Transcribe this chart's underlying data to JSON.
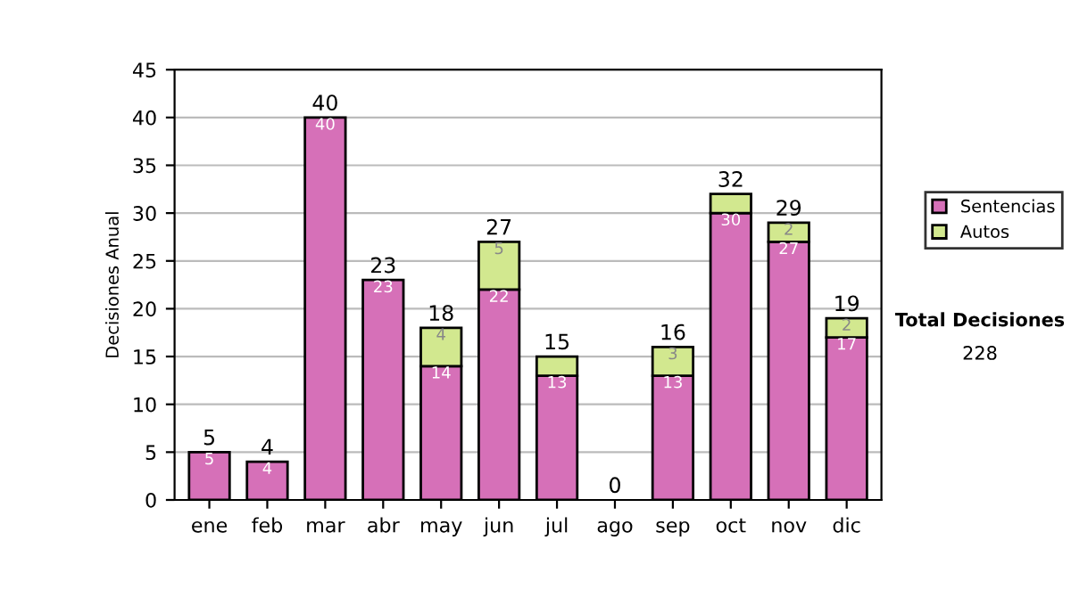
{
  "chart_data": {
    "type": "bar",
    "stacked": true,
    "ylabel": "Decisiones Anual",
    "categories": [
      "ene",
      "feb",
      "mar",
      "abr",
      "may",
      "jun",
      "jul",
      "ago",
      "sep",
      "oct",
      "nov",
      "dic"
    ],
    "series": [
      {
        "name": "Sentencias",
        "color": "#d670b8",
        "values": [
          5,
          4,
          40,
          23,
          14,
          22,
          13,
          null,
          13,
          30,
          27,
          17
        ],
        "value_labels": [
          "5",
          "4",
          "40",
          "23",
          "14",
          "22",
          "13",
          null,
          "13",
          "30",
          "27",
          "17"
        ]
      },
      {
        "name": "Autos",
        "color": "#d2e88f",
        "values": [
          null,
          null,
          null,
          null,
          4,
          5,
          2,
          null,
          3,
          2,
          2,
          2
        ],
        "value_labels": [
          null,
          null,
          null,
          null,
          "4",
          "5",
          null,
          null,
          "3",
          null,
          "2",
          "2"
        ]
      }
    ],
    "totals": [
      "5",
      "4",
      "40",
      "23",
      "18",
      "27",
      "15",
      "0",
      "16",
      "32",
      "29",
      "19"
    ],
    "ylim": [
      0,
      45
    ],
    "yticks": [
      0,
      5,
      10,
      15,
      20,
      25,
      30,
      35,
      40,
      45
    ],
    "grid": "y",
    "legend": "right",
    "annotations": [
      "Total Decisiones",
      "228"
    ]
  }
}
